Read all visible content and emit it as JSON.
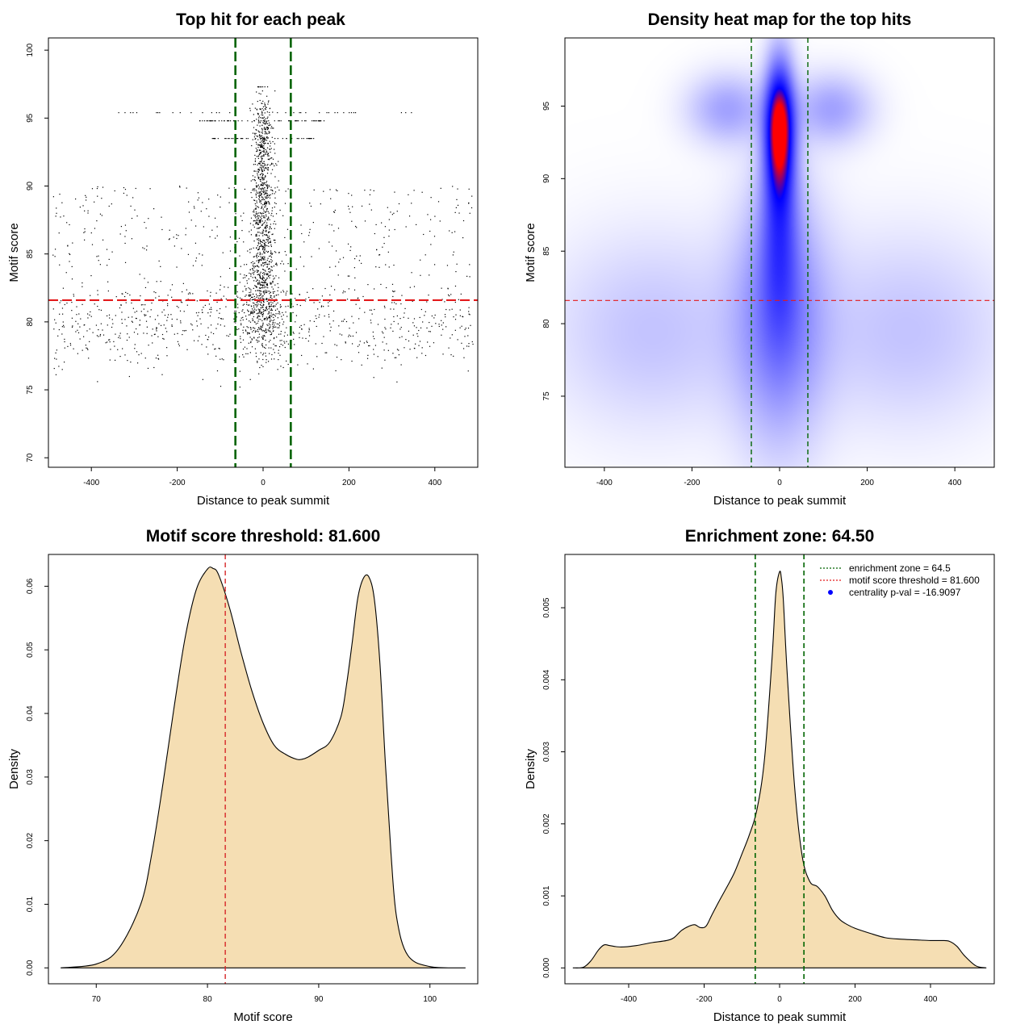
{
  "chart_data": [
    {
      "id": "scatter",
      "type": "scatter",
      "title": "Top hit for each peak",
      "xlabel": "Distance to peak summit",
      "ylabel": "Motif score",
      "xlim": [
        -500,
        500
      ],
      "ylim": [
        69.3,
        100.9
      ],
      "xticks": [
        -400,
        -200,
        0,
        200,
        400
      ],
      "yticks": [
        70,
        75,
        80,
        85,
        90,
        95,
        100
      ],
      "vlines": [
        -64.5,
        64.5
      ],
      "hline": 81.6,
      "vline_color": "#006400",
      "hline_color": "#e31a1c",
      "point_color": "#000000"
    },
    {
      "id": "heatmap",
      "type": "heatmap",
      "title": "Density heat map for the top hits",
      "xlabel": "Distance to peak summit",
      "ylabel": "Motif score",
      "xlim": [
        -490,
        490
      ],
      "ylim": [
        70.1,
        99.7
      ],
      "xticks": [
        -400,
        -200,
        0,
        200,
        400
      ],
      "yticks": [
        75,
        80,
        85,
        90,
        95
      ],
      "vlines": [
        -64.5,
        64.5
      ],
      "hline": 81.6,
      "colors": [
        "#ffffff",
        "#0000ff",
        "#ff0000"
      ],
      "blobs": [
        {
          "x": 0,
          "y": 93.5,
          "sx": 22,
          "sy": 3.0,
          "w": 1.25
        },
        {
          "x": 0,
          "y": 87.5,
          "sx": 30,
          "sy": 5.0,
          "w": 0.5
        },
        {
          "x": 0,
          "y": 80.5,
          "sx": 70,
          "sy": 6.0,
          "w": 0.45
        },
        {
          "x": -120,
          "y": 94.8,
          "sx": 60,
          "sy": 1.6,
          "w": 0.3
        },
        {
          "x": 120,
          "y": 94.8,
          "sx": 60,
          "sy": 1.6,
          "w": 0.3
        },
        {
          "x": -290,
          "y": 79.5,
          "sx": 160,
          "sy": 4.5,
          "w": 0.18
        },
        {
          "x": 290,
          "y": 79.5,
          "sx": 160,
          "sy": 4.5,
          "w": 0.18
        }
      ]
    },
    {
      "id": "score_density",
      "type": "area",
      "title": "Motif score threshold: 81.600",
      "xlabel": "Motif score",
      "ylabel": "Density",
      "xlim": [
        65.7,
        104.3
      ],
      "ylim": [
        -0.0025,
        0.065
      ],
      "xticks": [
        70,
        80,
        90,
        100
      ],
      "yticks": [
        0.0,
        0.01,
        0.02,
        0.03,
        0.04,
        0.05,
        0.06
      ],
      "ytick_labels": [
        "0.00",
        "0.01",
        "0.02",
        "0.03",
        "0.04",
        "0.05",
        "0.06"
      ],
      "vline": 81.6,
      "x": [
        66.8,
        70,
        72,
        74,
        75,
        76,
        77,
        78,
        79,
        80,
        80.5,
        81,
        82,
        83,
        84,
        85,
        86,
        87,
        88,
        88.5,
        89,
        90,
        91,
        92,
        92.5,
        93,
        93.5,
        94,
        94.5,
        95,
        95.5,
        96,
        96.5,
        97,
        98,
        100,
        103.2
      ],
      "y": [
        0,
        0.0006,
        0.003,
        0.01,
        0.018,
        0.029,
        0.041,
        0.052,
        0.0595,
        0.0627,
        0.0628,
        0.0618,
        0.0565,
        0.0497,
        0.0435,
        0.0385,
        0.035,
        0.0336,
        0.0328,
        0.0328,
        0.0331,
        0.0342,
        0.0355,
        0.0395,
        0.0445,
        0.051,
        0.058,
        0.0612,
        0.0615,
        0.058,
        0.048,
        0.032,
        0.018,
        0.008,
        0.002,
        0.0002,
        0
      ]
    },
    {
      "id": "distance_density",
      "type": "area",
      "title": "Enrichment zone: 64.50",
      "xlabel": "Distance to peak summit",
      "ylabel": "Density",
      "xlim": [
        -569,
        569
      ],
      "ylim": [
        -0.00022,
        0.00574
      ],
      "xticks": [
        -400,
        -200,
        0,
        200,
        400
      ],
      "yticks": [
        0,
        0.001,
        0.002,
        0.003,
        0.004,
        0.005
      ],
      "ytick_labels": [
        "0.000",
        "0.001",
        "0.002",
        "0.003",
        "0.004",
        "0.005"
      ],
      "vlines": [
        -64.5,
        64.5
      ],
      "x": [
        -548,
        -520,
        -500,
        -480,
        -465,
        -450,
        -420,
        -380,
        -340,
        -300,
        -280,
        -260,
        -240,
        -225,
        -210,
        -195,
        -180,
        -160,
        -140,
        -120,
        -100,
        -80,
        -60,
        -40,
        -20,
        -10,
        0,
        5,
        10,
        20,
        40,
        60,
        80,
        100,
        120,
        140,
        160,
        180,
        200,
        240,
        280,
        320,
        360,
        400,
        430,
        450,
        470,
        490,
        520,
        548
      ],
      "y": [
        0,
        1e-05,
        0.0001,
        0.00025,
        0.00032,
        0.00031,
        0.00029,
        0.00031,
        0.00035,
        0.00038,
        0.00042,
        0.00052,
        0.00058,
        0.0006,
        0.00056,
        0.00058,
        0.00073,
        0.00093,
        0.00112,
        0.00132,
        0.00158,
        0.00185,
        0.0022,
        0.0029,
        0.0043,
        0.0052,
        0.0055,
        0.0054,
        0.0051,
        0.0041,
        0.0025,
        0.00155,
        0.0012,
        0.00113,
        0.001,
        0.0008,
        0.00067,
        0.0006,
        0.00055,
        0.00048,
        0.00042,
        0.0004,
        0.00039,
        0.00038,
        0.00038,
        0.00037,
        0.0003,
        0.00017,
        3e-05,
        0
      ],
      "legend": [
        {
          "label": "enrichment zone = 64.5",
          "color": "#006400",
          "style": "dotted-line"
        },
        {
          "label": "motif score threshold = 81.600",
          "color": "#e31a1c",
          "style": "dotted-line"
        },
        {
          "label": "centrality p-val = -16.9097",
          "color": "#0000ff",
          "style": "point"
        }
      ]
    }
  ]
}
